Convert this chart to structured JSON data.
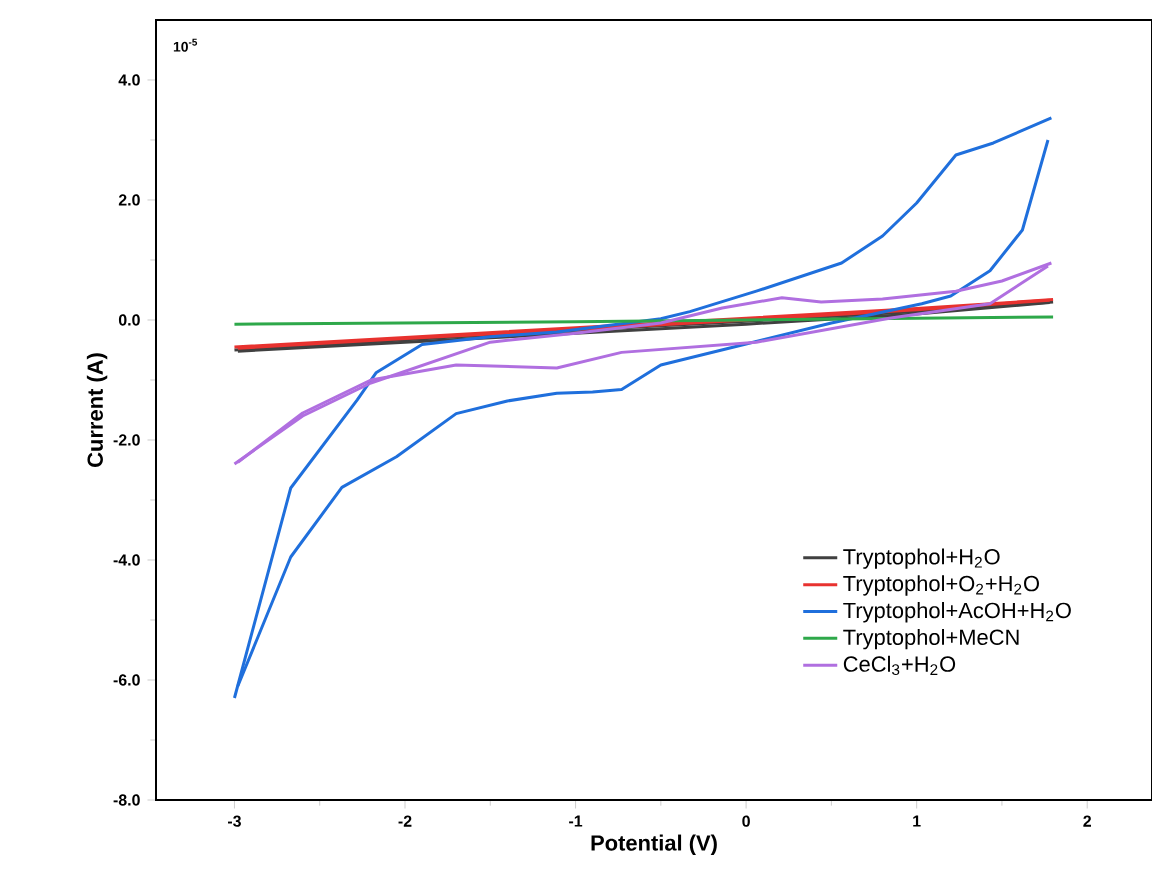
{
  "chart_data": {
    "type": "line",
    "xlabel": "Potential (V)",
    "ylabel": "Current (A)",
    "annotations": [
      "10$^{-5}$"
    ],
    "xlim": [
      -3.46,
      2.38
    ],
    "ylim": [
      -8,
      5
    ],
    "xticks": [
      -3,
      -2,
      -1,
      0,
      1,
      2
    ],
    "yticks": [
      {
        "value": -8,
        "label": "-8.0"
      },
      {
        "value": -6,
        "label": "-6.0"
      },
      {
        "value": -4,
        "label": "-4.0"
      },
      {
        "value": -2,
        "label": "-2.0"
      },
      {
        "value": 0,
        "label": "0.0"
      },
      {
        "value": 2,
        "label": "2.0"
      },
      {
        "value": 4,
        "label": "4.0"
      }
    ],
    "legend": "bottom right",
    "marker": "none",
    "line_style": "solid",
    "series": [
      {
        "name": "Tryptophol+H$_{2}$O",
        "color": "#404040",
        "x": [
          -3,
          -2,
          -1,
          0,
          1,
          1.8
        ],
        "values": [
          -0.5,
          -0.33,
          -0.17,
          -0.02,
          0.14,
          0.3
        ]
      },
      {
        "color": "#404040",
        "x": [
          -2.98,
          -2,
          -1,
          0,
          1,
          1.78
        ],
        "values": [
          -0.52,
          -0.37,
          -0.22,
          -0.07,
          0.1,
          0.29
        ]
      },
      {
        "name": "Tryptophol+O$_{2}$+H$_{2}$O",
        "color": "#e8322f",
        "x": [
          -3,
          -2,
          -1,
          0,
          1,
          1.8
        ],
        "values": [
          -0.45,
          -0.29,
          -0.13,
          0.03,
          0.19,
          0.34
        ]
      },
      {
        "color": "#e8322f",
        "x": [
          -2.98,
          -2,
          -1,
          0,
          1,
          1.78
        ],
        "values": [
          -0.47,
          -0.31,
          -0.16,
          0.0,
          0.17,
          0.33
        ]
      },
      {
        "name": "Tryptophol+AcOH+H$_{2}$O",
        "color": "#1f6fdc",
        "x": [
          -3,
          -2.67,
          -2.28,
          -2.17,
          -1.9,
          -1.5,
          -1.11,
          -0.5,
          -0.33,
          0.06,
          0.56,
          0.8,
          1.0,
          1.23,
          1.45,
          1.79
        ],
        "values": [
          -6.3,
          -2.8,
          -1.33,
          -0.88,
          -0.41,
          -0.28,
          -0.2,
          0.02,
          0.14,
          0.48,
          0.95,
          1.4,
          1.95,
          2.75,
          2.95,
          3.37
        ]
      },
      {
        "color": "#1f6fdc",
        "x": [
          -2.98,
          -2.67,
          -2.37,
          -2.05,
          -1.7,
          -1.4,
          -1.11,
          -0.9,
          -0.73,
          -0.5,
          0.0,
          0.5,
          1.03,
          1.2,
          1.43,
          1.62,
          1.77
        ],
        "values": [
          -6.1,
          -3.95,
          -2.79,
          -2.28,
          -1.56,
          -1.35,
          -1.22,
          -1.2,
          -1.16,
          -0.75,
          -0.4,
          -0.05,
          0.27,
          0.4,
          0.82,
          1.5,
          3.0
        ]
      },
      {
        "name": "Tryptophol+MeCN",
        "color": "#2ea84a",
        "x": [
          -3,
          -1,
          0,
          1,
          1.8
        ],
        "values": [
          -0.07,
          -0.03,
          0.0,
          0.03,
          0.05
        ]
      },
      {
        "name": "CeCl$_{3}$+H$_{2}$O",
        "color": "#b06fe0",
        "x": [
          -3,
          -2.6,
          -2.2,
          -1.5,
          -1.0,
          -0.5,
          -0.14,
          0.21,
          0.44,
          0.8,
          1.23,
          1.5,
          1.79
        ],
        "values": [
          -2.4,
          -1.6,
          -1.05,
          -0.37,
          -0.22,
          -0.05,
          0.2,
          0.37,
          0.3,
          0.35,
          0.48,
          0.65,
          0.95
        ]
      },
      {
        "color": "#b06fe0",
        "x": [
          -2.98,
          -2.6,
          -2.2,
          -1.7,
          -1.11,
          -0.73,
          0.06,
          0.84,
          1.43,
          1.77
        ],
        "values": [
          -2.37,
          -1.55,
          -1.0,
          -0.75,
          -0.8,
          -0.54,
          -0.37,
          0.03,
          0.27,
          0.9
        ]
      }
    ]
  }
}
